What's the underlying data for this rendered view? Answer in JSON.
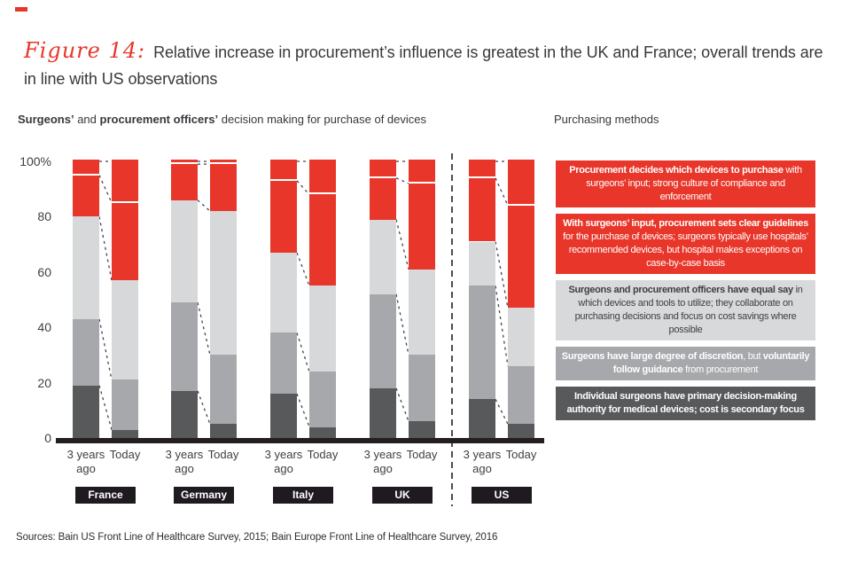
{
  "brand": {
    "accent_red": "#e8362a",
    "dark_gray": "#58595b",
    "medium_gray": "#a6a8ab",
    "light_gray": "#d7d8da",
    "black": "#231f20"
  },
  "title": {
    "figure_label": "Figure 14:",
    "text": "Relative increase in procurement’s influence is greatest in the UK and France; overall trends are in line with US observations"
  },
  "subtitle": {
    "segments": [
      {
        "text": "Surgeons’",
        "bold": true
      },
      {
        "text": " and ",
        "bold": false
      },
      {
        "text": "procurement officers’",
        "bold": true
      },
      {
        "text": " decision making for purchase of devices",
        "bold": false
      }
    ]
  },
  "legend_header": "Purchasing methods",
  "source": "Sources: Bain US Front Line of Healthcare Survey, 2015; Bain Europe Front Line of Healthcare Survey, 2016",
  "chart_data": {
    "type": "bar",
    "stacked": true,
    "unit": "percent",
    "title": "Surgeons’ and procurement officers’ decision making for purchase of devices",
    "ylim": [
      0,
      100
    ],
    "ytick_labels": [
      "100%",
      "80",
      "60",
      "40",
      "20",
      "0"
    ],
    "ytick_values": [
      100,
      80,
      60,
      40,
      20,
      0
    ],
    "grid": false,
    "bar_labels": [
      "3 years ago",
      "Today"
    ],
    "segments_bottom_to_top": [
      "Individual surgeons have primary decision-making authority",
      "Surgeons have large degree of discretion",
      "Surgeons and procurement officers have equal say",
      "With surgeons’ input, procurement sets clear guidelines",
      "Procurement decides which devices to purchase"
    ],
    "segment_colors": [
      "#58595b",
      "#a6a8ab",
      "#d7d8da",
      "#e8362a",
      "#e8362a"
    ],
    "countries": [
      {
        "name": "France",
        "three_years_ago": [
          19,
          24,
          37,
          15,
          5
        ],
        "today": [
          3,
          18,
          36,
          28,
          15
        ]
      },
      {
        "name": "Germany",
        "three_years_ago": [
          17,
          32,
          37,
          13,
          1
        ],
        "today": [
          5,
          25,
          52,
          17,
          1
        ]
      },
      {
        "name": "Italy",
        "three_years_ago": [
          16,
          22,
          29,
          26,
          7
        ],
        "today": [
          4,
          20,
          31,
          33,
          12
        ]
      },
      {
        "name": "UK",
        "three_years_ago": [
          18,
          34,
          27,
          15,
          6
        ],
        "today": [
          6,
          24,
          31,
          31,
          8
        ]
      },
      {
        "name": "US",
        "three_years_ago": [
          14,
          41,
          16,
          23,
          6
        ],
        "today": [
          5,
          21,
          21,
          37,
          16
        ]
      }
    ],
    "separator_after": "UK",
    "legend_position": "right"
  },
  "legend_items": [
    {
      "bg": "#e8362a",
      "fg": "#ffffff",
      "segments": [
        {
          "text": "Procurement decides which devices to purchase",
          "bold": true
        },
        {
          "text": " with surgeons’ input; strong culture of compliance and enforcement",
          "bold": false
        }
      ]
    },
    {
      "bg": "#e8362a",
      "fg": "#ffffff",
      "segments": [
        {
          "text": "With surgeons’ input, procurement sets clear guidelines",
          "bold": true
        },
        {
          "text": " for the purchase of devices; surgeons typically use hospitals’ recommended devices, but hospital makes exceptions on case-by-case basis",
          "bold": false
        }
      ]
    },
    {
      "bg": "#d8d9da",
      "fg": "#3f3e43",
      "segments": [
        {
          "text": "Surgeons and procurement officers have equal say",
          "bold": true
        },
        {
          "text": " in which devices and tools to utilize; they collaborate on purchasing decisions and focus on cost savings where possible",
          "bold": false
        }
      ]
    },
    {
      "bg": "#a6a8ab",
      "fg": "#ffffff",
      "segments": [
        {
          "text": "Surgeons have large degree of discretion",
          "bold": true
        },
        {
          "text": ", but ",
          "bold": false
        },
        {
          "text": "voluntarily follow guidance",
          "bold": true
        },
        {
          "text": " from procurement",
          "bold": false
        }
      ]
    },
    {
      "bg": "#58595b",
      "fg": "#ffffff",
      "segments": [
        {
          "text": "Individual surgeons have primary decision-making authority for medical devices; cost is secondary focus",
          "bold": true
        }
      ]
    }
  ]
}
